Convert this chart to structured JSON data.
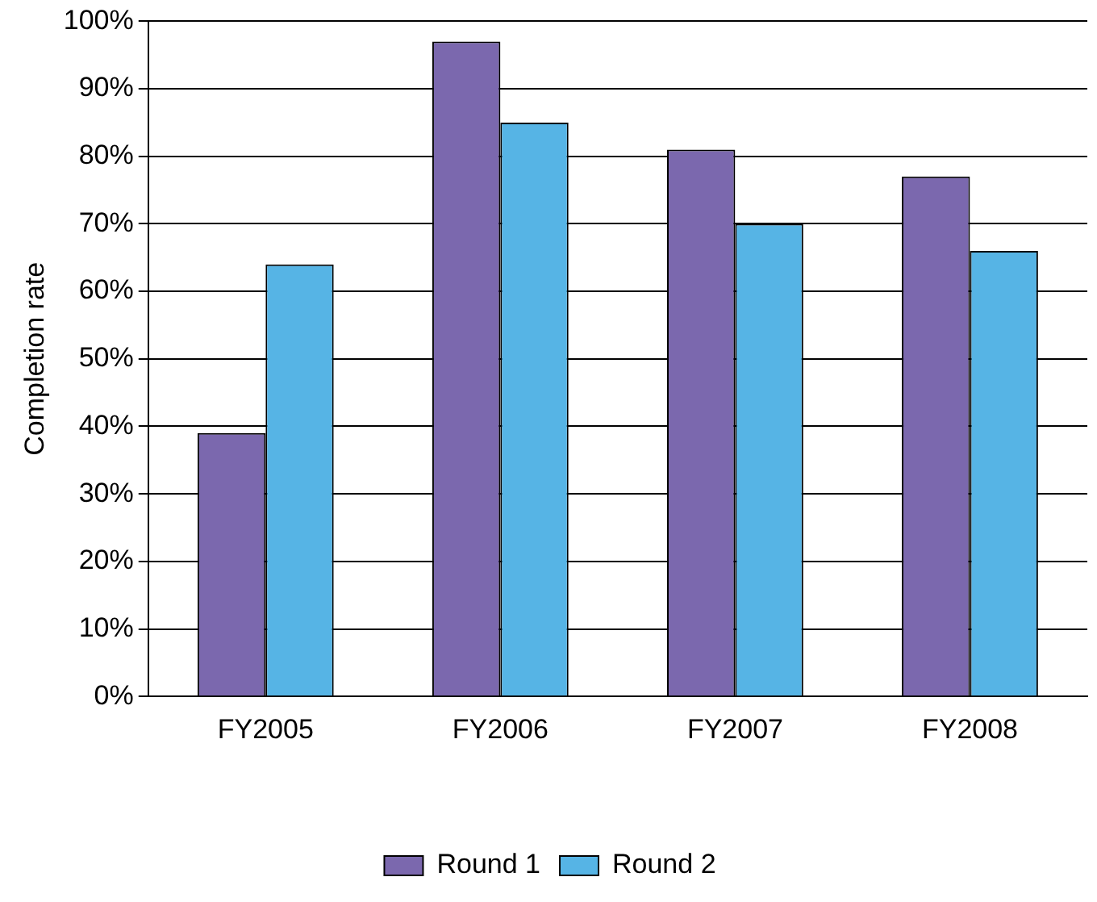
{
  "chart_data": {
    "type": "bar",
    "ylabel": "Completion rate",
    "categories": [
      "FY2005",
      "FY2006",
      "FY2007",
      "FY2008"
    ],
    "series": [
      {
        "name": "Round 1",
        "color": "#7b68ae",
        "values": [
          39,
          97,
          81,
          77
        ]
      },
      {
        "name": "Round 2",
        "color": "#56b4e5",
        "values": [
          64,
          85,
          70,
          66
        ]
      }
    ],
    "ylim": [
      0,
      100
    ],
    "yticks": [
      {
        "value": 0,
        "label": "0%"
      },
      {
        "value": 10,
        "label": "10%"
      },
      {
        "value": 20,
        "label": "20%"
      },
      {
        "value": 30,
        "label": "30%"
      },
      {
        "value": 40,
        "label": "40%"
      },
      {
        "value": 50,
        "label": "50%"
      },
      {
        "value": 60,
        "label": "60%"
      },
      {
        "value": 70,
        "label": "70%"
      },
      {
        "value": 80,
        "label": "80%"
      },
      {
        "value": 90,
        "label": "90%"
      },
      {
        "value": 100,
        "label": "100%"
      }
    ],
    "grid": "y",
    "legend": "bottom"
  }
}
